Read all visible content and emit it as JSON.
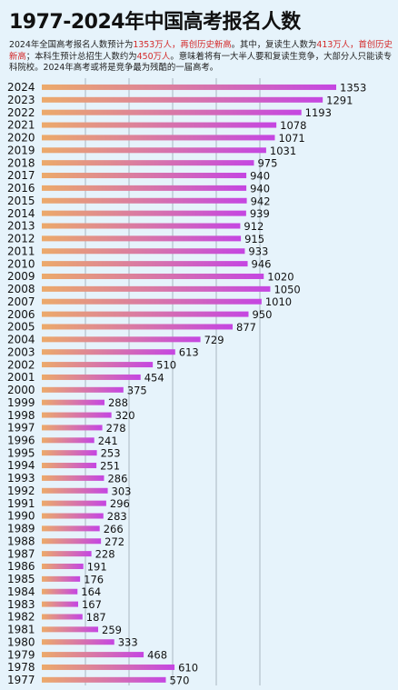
{
  "title": "1977-2024年中国高考报名人数",
  "intro": {
    "t1": "2024年全国高考报名人数预计为",
    "h1": "1353万人，再创历史新高",
    "t2": "。其中，复读生人数为",
    "h2": "413万人，首创历史新高",
    "t3": "；本科生预计总招生人数约为",
    "h3": "450万人",
    "t4": "。意味着将有一大半人要和复读生竞争，大部分人只能读专科院校。2024年高考或将是竞争最为残酷的一届高考。"
  },
  "colors": {
    "bar_left": "#ecaa6a",
    "bar_right": "#c546e2",
    "highlight": "#d42828",
    "grid": "#7b8a96"
  },
  "chart_data": {
    "type": "bar",
    "orientation": "horizontal",
    "categories": [
      "2024",
      "2023",
      "2022",
      "2021",
      "2020",
      "2019",
      "2018",
      "2017",
      "2016",
      "2015",
      "2014",
      "2013",
      "2012",
      "2011",
      "2010",
      "2009",
      "2008",
      "2007",
      "2006",
      "2005",
      "2004",
      "2003",
      "2002",
      "2001",
      "2000",
      "1999",
      "1998",
      "1997",
      "1996",
      "1995",
      "1994",
      "1993",
      "1992",
      "1991",
      "1990",
      "1989",
      "1988",
      "1987",
      "1986",
      "1985",
      "1984",
      "1983",
      "1982",
      "1981",
      "1980",
      "1979",
      "1978",
      "1977"
    ],
    "values": [
      1353,
      1291,
      1193,
      1078,
      1071,
      1031,
      975,
      940,
      940,
      942,
      939,
      912,
      915,
      933,
      946,
      1020,
      1050,
      1010,
      950,
      877,
      729,
      613,
      510,
      454,
      375,
      288,
      320,
      278,
      241,
      253,
      251,
      286,
      303,
      296,
      283,
      266,
      272,
      228,
      191,
      176,
      164,
      167,
      187,
      259,
      333,
      468,
      610,
      570
    ],
    "value_labels": [
      "1353",
      "1291",
      "1193",
      "1078",
      "1071",
      "1031",
      "975",
      "940",
      "940",
      "942",
      "939",
      "912",
      "915",
      "933",
      "946",
      "1020",
      "1050",
      "1010",
      "950",
      "877",
      "729",
      "613",
      "510",
      "454",
      "375",
      "288",
      "320",
      "278",
      "241",
      "253",
      "251",
      "286",
      "303",
      "296",
      "283",
      "266",
      "272",
      "228",
      "191",
      "176",
      "164",
      "167",
      "187",
      "259",
      "333",
      "468",
      "610",
      "570"
    ],
    "xlim": [
      0,
      1353
    ],
    "grid": true
  }
}
